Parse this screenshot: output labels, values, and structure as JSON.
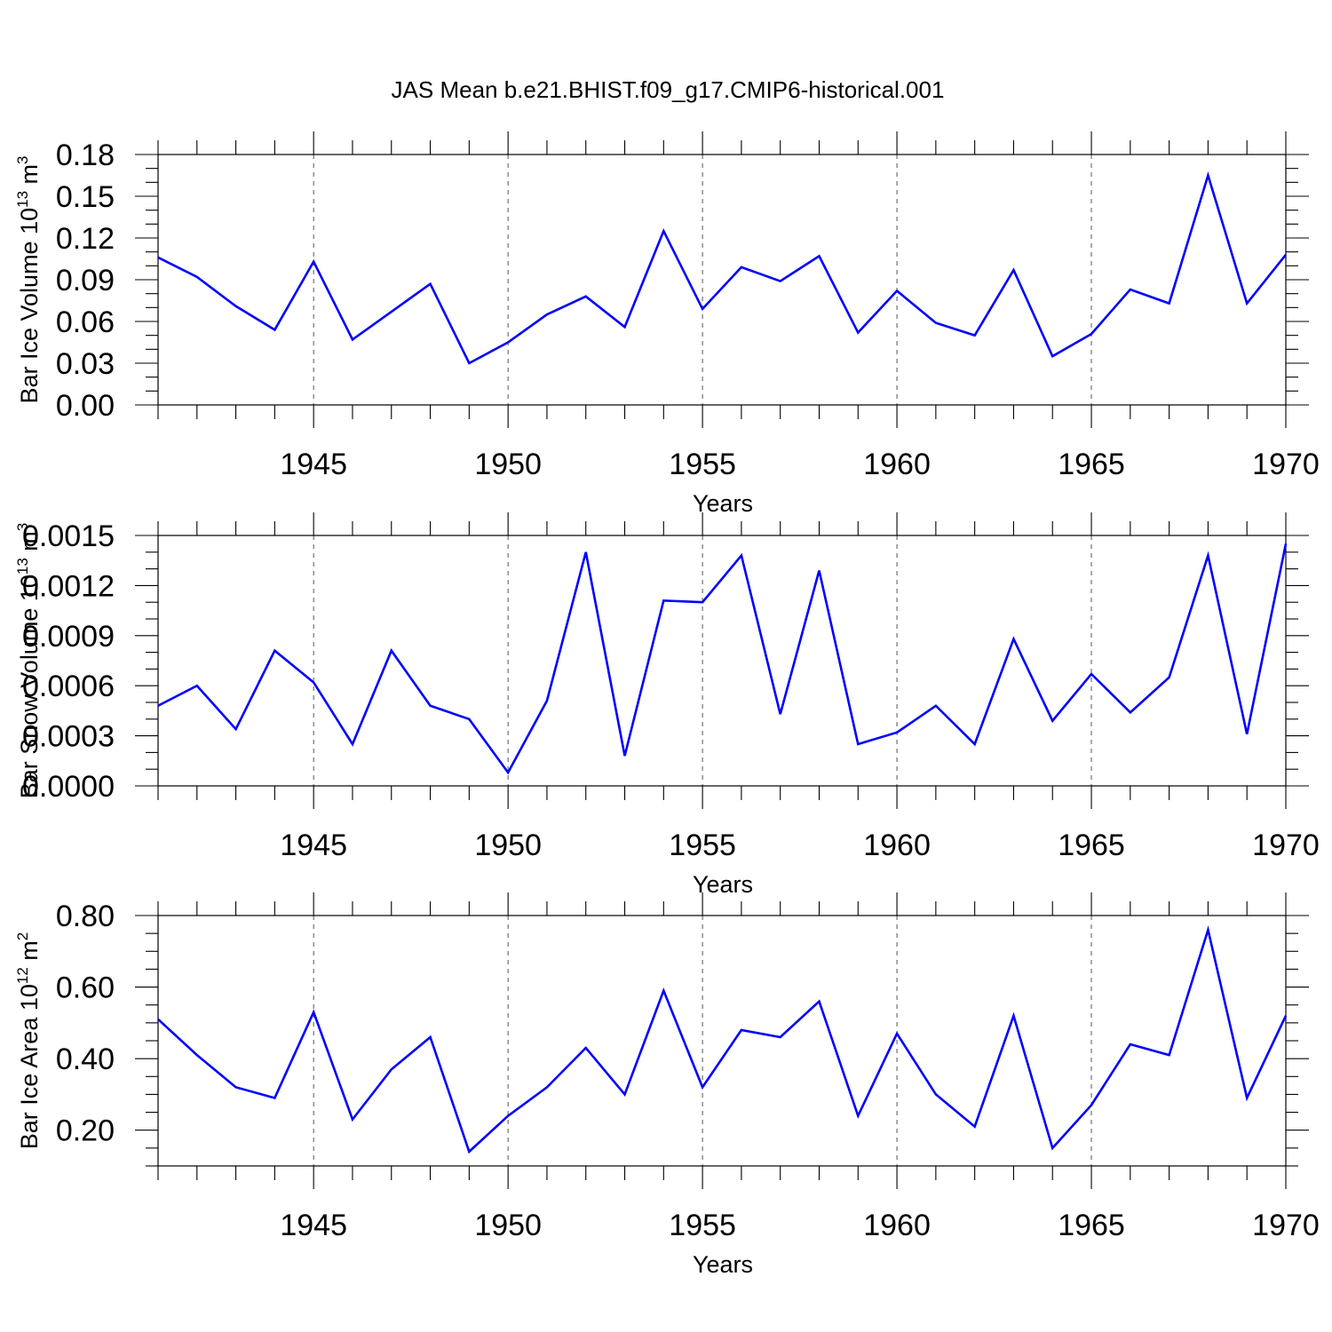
{
  "title": "JAS Mean b.e21.BHIST.f09_g17.CMIP6-historical.001",
  "chart_data": [
    {
      "type": "line",
      "ylabel": "Bar Ice Volume 10",
      "ylabel_exp": "13",
      "ylabel_unit": " m",
      "ylabel_unit_exp": "3",
      "xlabel": "Years",
      "xlim": [
        1941,
        1970
      ],
      "ylim": [
        0,
        0.18
      ],
      "yticks": [
        0,
        0.03,
        0.06,
        0.09,
        0.12,
        0.15,
        0.18
      ],
      "ytick_labels": [
        "0.00",
        "0.03",
        "0.06",
        "0.09",
        "0.12",
        "0.15",
        "0.18"
      ],
      "yminor": 0.01,
      "xticks": [
        1945,
        1950,
        1955,
        1960,
        1965,
        1970
      ],
      "xtick_labels": [
        "1945",
        "1950",
        "1955",
        "1960",
        "1965",
        "1970"
      ],
      "grid": "dashed vertical at major x ticks",
      "series": [
        {
          "name": "Bar Ice Volume",
          "color": "#0000ff",
          "x": [
            1941,
            1942,
            1943,
            1944,
            1945,
            1946,
            1947,
            1948,
            1949,
            1950,
            1951,
            1952,
            1953,
            1954,
            1955,
            1956,
            1957,
            1958,
            1959,
            1960,
            1961,
            1962,
            1963,
            1964,
            1965,
            1966,
            1967,
            1968,
            1969,
            1970
          ],
          "y": [
            0.106,
            0.092,
            0.071,
            0.054,
            0.103,
            0.047,
            0.067,
            0.087,
            0.03,
            0.045,
            0.065,
            0.078,
            0.056,
            0.125,
            0.069,
            0.099,
            0.089,
            0.107,
            0.052,
            0.082,
            0.059,
            0.05,
            0.097,
            0.035,
            0.051,
            0.083,
            0.073,
            0.165,
            0.073,
            0.108
          ]
        }
      ]
    },
    {
      "type": "line",
      "ylabel": "Bar Snow Volume 10",
      "ylabel_exp": "13",
      "ylabel_unit": " m",
      "ylabel_unit_exp": "3",
      "xlabel": "Years",
      "xlim": [
        1941,
        1970
      ],
      "ylim": [
        0,
        0.0015
      ],
      "yticks": [
        0,
        0.0003,
        0.0006,
        0.0009,
        0.0012,
        0.0015
      ],
      "ytick_labels": [
        "0.0000",
        "0.0003",
        "0.0006",
        "0.0009",
        "0.0012",
        "0.0015"
      ],
      "yminor": 0.0001,
      "xticks": [
        1945,
        1950,
        1955,
        1960,
        1965,
        1970
      ],
      "xtick_labels": [
        "1945",
        "1950",
        "1955",
        "1960",
        "1965",
        "1970"
      ],
      "grid": "dashed vertical at major x ticks",
      "series": [
        {
          "name": "Bar Snow Volume",
          "color": "#0000ff",
          "x": [
            1941,
            1942,
            1943,
            1944,
            1945,
            1946,
            1947,
            1948,
            1949,
            1950,
            1951,
            1952,
            1953,
            1954,
            1955,
            1956,
            1957,
            1958,
            1959,
            1960,
            1961,
            1962,
            1963,
            1964,
            1965,
            1966,
            1967,
            1968,
            1969,
            1970
          ],
          "y": [
            0.00048,
            0.0006,
            0.00034,
            0.00081,
            0.00062,
            0.00025,
            0.00081,
            0.00048,
            0.0004,
            8e-05,
            0.00051,
            0.0014,
            0.00018,
            0.00111,
            0.0011,
            0.00138,
            0.00043,
            0.00129,
            0.00025,
            0.00032,
            0.00048,
            0.00025,
            0.00088,
            0.00039,
            0.00067,
            0.00044,
            0.00065,
            0.00138,
            0.00031,
            0.00145
          ]
        }
      ]
    },
    {
      "type": "line",
      "ylabel": "Bar Ice Area 10",
      "ylabel_exp": "12",
      "ylabel_unit": " m",
      "ylabel_unit_exp": "2",
      "xlabel": "Years",
      "xlim": [
        1941,
        1970
      ],
      "ylim": [
        0.1,
        0.8
      ],
      "yticks": [
        0.2,
        0.4,
        0.6,
        0.8
      ],
      "ytick_labels": [
        "0.20",
        "0.40",
        "0.60",
        "0.80"
      ],
      "yminor": 0.05,
      "xticks": [
        1945,
        1950,
        1955,
        1960,
        1965,
        1970
      ],
      "xtick_labels": [
        "1945",
        "1950",
        "1955",
        "1960",
        "1965",
        "1970"
      ],
      "grid": "dashed vertical at major x ticks",
      "series": [
        {
          "name": "Bar Ice Area",
          "color": "#0000ff",
          "x": [
            1941,
            1942,
            1943,
            1944,
            1945,
            1946,
            1947,
            1948,
            1949,
            1950,
            1951,
            1952,
            1953,
            1954,
            1955,
            1956,
            1957,
            1958,
            1959,
            1960,
            1961,
            1962,
            1963,
            1964,
            1965,
            1966,
            1967,
            1968,
            1969,
            1970
          ],
          "y": [
            0.51,
            0.41,
            0.32,
            0.29,
            0.53,
            0.23,
            0.37,
            0.46,
            0.14,
            0.24,
            0.32,
            0.43,
            0.3,
            0.59,
            0.32,
            0.48,
            0.46,
            0.56,
            0.24,
            0.47,
            0.3,
            0.21,
            0.52,
            0.15,
            0.27,
            0.44,
            0.41,
            0.76,
            0.29,
            0.52
          ]
        }
      ]
    }
  ]
}
